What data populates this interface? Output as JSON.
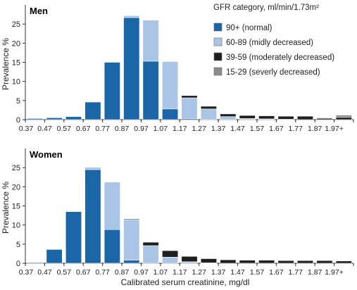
{
  "chart_data": {
    "type": "bar",
    "stacked": true,
    "xlabel": "Calibrated serum creatinine, mg/dl",
    "ylabel": "Prevalence %",
    "categories": [
      "0.37",
      "0.47",
      "0.57",
      "0.67",
      "0.77",
      "0.87",
      "0.97",
      "1.07",
      "1.17",
      "1.27",
      "1.37",
      "1.47",
      "1.57",
      "1.67",
      "1.77",
      "1.87",
      "1.97+"
    ],
    "legend": {
      "title": "GFR category, ml/min/1.73m²",
      "placement": "top-right"
    },
    "series_style": [
      {
        "name": "90+ (normal)",
        "color": "#1a66a6"
      },
      {
        "name": "60-89 (midly decreased)",
        "color": "#a9c4e4"
      },
      {
        "name": "39-59 (moderately decreased)",
        "color": "#1f1f1f"
      },
      {
        "name": "15-29 (severly decreased)",
        "color": "#8c8c8c"
      }
    ],
    "panels": [
      {
        "title": "Men",
        "ylim": [
          0,
          30
        ],
        "yticks": [
          0,
          5,
          10,
          15,
          20,
          25
        ],
        "series": [
          {
            "name": "90+ (normal)",
            "values": [
              0.3,
              0.5,
              0.8,
              4.6,
              15.0,
              26.7,
              15.3,
              2.8,
              0.3,
              0,
              0,
              0,
              0,
              0,
              0,
              0,
              0
            ]
          },
          {
            "name": "60-89 (midly decreased)",
            "values": [
              0,
              0,
              0,
              0,
              0,
              0.5,
              10.7,
              12.4,
              5.4,
              2.8,
              0.8,
              0.3,
              0.2,
              0.1,
              0,
              0,
              0
            ]
          },
          {
            "name": "39-59 (moderately decreased)",
            "values": [
              0,
              0,
              0,
              0,
              0,
              0,
              0,
              0,
              0.6,
              0.7,
              0.7,
              0.8,
              0.8,
              0.8,
              0.9,
              0.4,
              0.6
            ]
          },
          {
            "name": "15-29 (severly decreased)",
            "values": [
              0,
              0,
              0,
              0,
              0,
              0,
              0,
              0,
              0,
              0,
              0,
              0,
              0,
              0,
              0,
              0.1,
              0.6
            ]
          }
        ]
      },
      {
        "title": "Women",
        "ylim": [
          0,
          30
        ],
        "yticks": [
          0,
          5,
          10,
          15,
          20,
          25
        ],
        "series": [
          {
            "name": "90+ (normal)",
            "values": [
              0.2,
              3.6,
              13.5,
              24.5,
              8.8,
              0.8,
              0,
              0,
              0,
              0,
              0,
              0,
              0,
              0,
              0,
              0,
              0
            ]
          },
          {
            "name": "60-89 (midly decreased)",
            "values": [
              0,
              0,
              0,
              0.6,
              12.4,
              10.6,
              4.6,
              1.6,
              0.4,
              0.1,
              0,
              0,
              0,
              0,
              0,
              0,
              0
            ]
          },
          {
            "name": "39-59 (moderately decreased)",
            "values": [
              0,
              0,
              0,
              0,
              0,
              0.2,
              0.9,
              1.7,
              1.4,
              1.1,
              0.9,
              0.8,
              0.8,
              0.7,
              0.7,
              0.7,
              0.6
            ]
          },
          {
            "name": "15-29 (severly decreased)",
            "values": [
              0,
              0,
              0,
              0,
              0,
              0,
              0,
              0,
              0,
              0,
              0,
              0,
              0,
              0,
              0,
              0,
              0
            ]
          }
        ]
      }
    ]
  }
}
